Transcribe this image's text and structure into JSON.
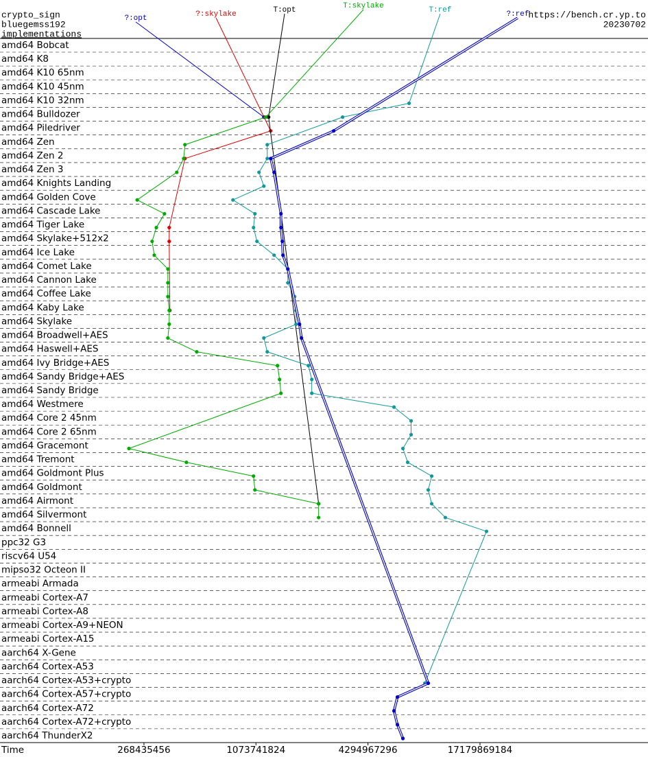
{
  "chart_data": {
    "type": "line",
    "title": "crypto_sign",
    "subtitle": "bluegemss192",
    "y_label": "implementations",
    "source": "https://bench.cr.yp.to",
    "date": "20230702",
    "x_label": "Time",
    "x_log": true,
    "xlim": [
      45200000,
      137438953472
    ],
    "xticks": [
      268435456,
      1073741824,
      4294967296,
      17179869184
    ],
    "categories": [
      "amd64 Bobcat",
      "amd64 K8",
      "amd64 K10 65nm",
      "amd64 K10 45nm",
      "amd64 K10 32nm",
      "amd64 Bulldozer",
      "amd64 Piledriver",
      "amd64 Zen",
      "amd64 Zen 2",
      "amd64 Zen 3",
      "amd64 Knights Landing",
      "amd64 Golden Cove",
      "amd64 Cascade Lake",
      "amd64 Tiger Lake",
      "amd64 Skylake+512x2",
      "amd64 Ice Lake",
      "amd64 Comet Lake",
      "amd64 Cannon Lake",
      "amd64 Coffee Lake",
      "amd64 Kaby Lake",
      "amd64 Skylake",
      "amd64 Broadwell+AES",
      "amd64 Haswell+AES",
      "amd64 Ivy Bridge+AES",
      "amd64 Sandy Bridge+AES",
      "amd64 Sandy Bridge",
      "amd64 Westmere",
      "amd64 Core 2 45nm",
      "amd64 Core 2 65nm",
      "amd64 Gracemont",
      "amd64 Tremont",
      "amd64 Goldmont Plus",
      "amd64 Goldmont",
      "amd64 Airmont",
      "amd64 Silvermont",
      "amd64 Bonnell",
      "ppc32 G3",
      "riscv64 U54",
      "mipso32 Octeon II",
      "armeabi Armada",
      "armeabi Cortex-A7",
      "armeabi Cortex-A8",
      "armeabi Cortex-A9+NEON",
      "armeabi Cortex-A15",
      "aarch64 X-Gene",
      "aarch64 Cortex-A53",
      "aarch64 Cortex-A53+crypto",
      "aarch64 Cortex-A57+crypto",
      "aarch64 Cortex-A72",
      "aarch64 Cortex-A72+crypto",
      "aarch64 ThunderX2"
    ],
    "series": [
      {
        "name": "?:opt",
        "color": "#0000cc",
        "line_style": "single",
        "values": [
          null,
          null,
          null,
          null,
          null,
          1184000000,
          null,
          null,
          null,
          null,
          null,
          null,
          null,
          null,
          null,
          null,
          null,
          null,
          null,
          null,
          null,
          null,
          null,
          null,
          null,
          null,
          null,
          null,
          null,
          null,
          null,
          null,
          null,
          null,
          null,
          null,
          null,
          null,
          null,
          null,
          null,
          null,
          null,
          null,
          null,
          null,
          null,
          null,
          null,
          null,
          null
        ]
      },
      {
        "name": "?:skylake",
        "color": "#dd0000",
        "line_style": "single",
        "values": [
          null,
          null,
          null,
          null,
          null,
          null,
          1288000000,
          null,
          446000000,
          null,
          null,
          null,
          null,
          367000000,
          367000000,
          null,
          null,
          null,
          null,
          370000000,
          null,
          null,
          null,
          null,
          null,
          null,
          null,
          null,
          null,
          null,
          null,
          null,
          null,
          null,
          null,
          null,
          null,
          null,
          null,
          null,
          null,
          null,
          null,
          null,
          null,
          null,
          null,
          null,
          null,
          null,
          null
        ]
      },
      {
        "name": "T:opt",
        "color": "#000000",
        "line_style": "single",
        "values": [
          null,
          null,
          null,
          null,
          null,
          1256000000,
          null,
          null,
          null,
          null,
          null,
          null,
          null,
          null,
          null,
          null,
          null,
          null,
          null,
          null,
          null,
          null,
          null,
          null,
          null,
          null,
          null,
          null,
          null,
          null,
          null,
          null,
          null,
          2332000000,
          null,
          null,
          null,
          null,
          null,
          null,
          null,
          null,
          null,
          null,
          null,
          null,
          null,
          null,
          null,
          null,
          null
        ]
      },
      {
        "name": "T:skylake",
        "color": "#00aa00",
        "line_style": "single",
        "values": [
          null,
          null,
          null,
          null,
          null,
          1214000000,
          null,
          446000000,
          439000000,
          403000000,
          null,
          247000000,
          346000000,
          313000000,
          297000000,
          305000000,
          361000000,
          361000000,
          361000000,
          367000000,
          367000000,
          361000000,
          516000000,
          1402000000,
          1438000000,
          1463000000,
          null,
          null,
          null,
          223000000,
          454000000,
          1042000000,
          1060000000,
          2332000000,
          2332000000,
          null,
          null,
          null,
          null,
          null,
          null,
          null,
          null,
          null,
          null,
          null,
          null,
          null,
          null,
          null,
          null
        ]
      },
      {
        "name": "T:ref",
        "color": "#119999",
        "line_style": "single",
        "values": [
          null,
          null,
          null,
          null,
          7143000000,
          3138000000,
          null,
          1235000000,
          1235000000,
          1115000000,
          1184000000,
          808000000,
          1060000000,
          1042000000,
          1087000000,
          1344000000,
          1593000000,
          1593000000,
          1733000000,
          1764000000,
          1764000000,
          1184000000,
          1235000000,
          2054000000,
          2143000000,
          2143000000,
          5927000000,
          7327000000,
          7327000000,
          6619000000,
          7022000000,
          9450000000,
          9054000000,
          9450000000,
          11190000000,
          18620000000,
          null,
          null,
          null,
          null,
          null,
          null,
          null,
          null,
          null,
          null,
          8680000000,
          null,
          null,
          null,
          null
        ]
      },
      {
        "name": "?:ref",
        "color": "#0000cc",
        "line_style": "double",
        "values": [
          null,
          null,
          null,
          null,
          null,
          null,
          2810000000,
          null,
          1288000000,
          1344000000,
          null,
          null,
          1463000000,
          1463000000,
          1488000000,
          1500000000,
          1593000000,
          null,
          null,
          null,
          1840000000,
          1886000000,
          null,
          null,
          null,
          null,
          null,
          null,
          null,
          null,
          null,
          null,
          null,
          null,
          null,
          null,
          null,
          null,
          null,
          null,
          null,
          null,
          null,
          null,
          null,
          null,
          9054000000,
          6184000000,
          5927000000,
          6184000000,
          6619000000
        ]
      }
    ]
  }
}
